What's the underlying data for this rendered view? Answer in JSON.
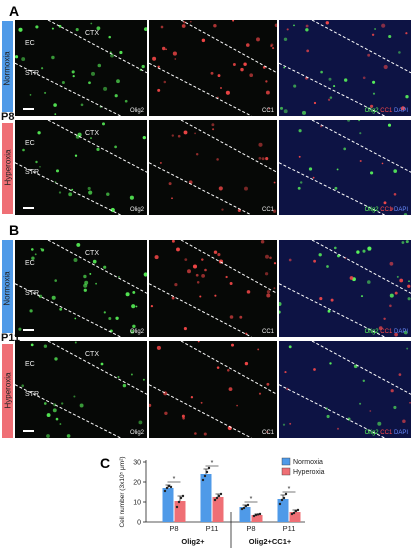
{
  "panels": {
    "a_label": "A",
    "b_label": "B",
    "c_label": "C"
  },
  "ages": {
    "a": "P8",
    "b": "P11"
  },
  "conditions": {
    "normoxia": "Normoxia",
    "hyperoxia": "Hyperoxia"
  },
  "regions": {
    "ec": "EC",
    "ctx": "CTX",
    "str": "STR"
  },
  "markers": {
    "olig2": "Olig2",
    "cc1": "CC1",
    "dapi": "DAPI"
  },
  "colors": {
    "normoxia": "#4f9ae8",
    "hyperoxia": "#ef6f75",
    "olig2_channel": "#5cff5c",
    "cc1_channel": "#ff4a4a",
    "dapi_channel": "#6a8cff"
  },
  "chart_data": {
    "type": "bar",
    "ylabel": "Cell number (3x10⁵ μm²)",
    "groups": [
      "Olig2+",
      "Olig2+CC1+"
    ],
    "categories": [
      "P8",
      "P11",
      "P8",
      "P11"
    ],
    "series": [
      {
        "name": "Normoxia",
        "values": [
          17,
          24,
          7.5,
          11.5
        ],
        "errors": [
          1.5,
          2.5,
          1,
          2
        ],
        "points": [
          [
            15.5,
            17,
            18,
            17.5
          ],
          [
            21,
            23,
            25,
            27
          ],
          [
            6.5,
            7,
            8,
            8.5
          ],
          [
            9,
            11,
            12,
            14
          ]
        ]
      },
      {
        "name": "Hyperoxia",
        "values": [
          10.5,
          12.5,
          3.5,
          5
        ],
        "errors": [
          2.5,
          1.5,
          0.5,
          1
        ],
        "points": [
          [
            7.5,
            10,
            12,
            13
          ],
          [
            11,
            12,
            13,
            14
          ],
          [
            3,
            3.5,
            3.8,
            4
          ],
          [
            4,
            4.5,
            5.5,
            6
          ]
        ]
      }
    ],
    "significance": [
      "*",
      "*",
      "*",
      "*"
    ],
    "ylim": [
      0,
      30
    ],
    "yticks": [
      0,
      10,
      20,
      30
    ],
    "legend_position": "top-right",
    "grid": false
  }
}
